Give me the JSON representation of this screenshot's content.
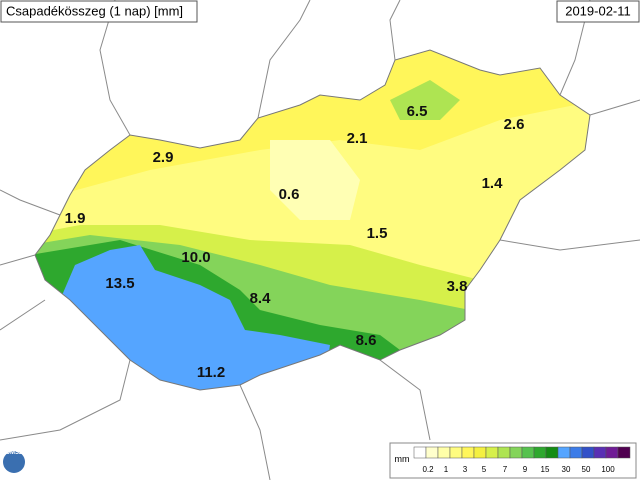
{
  "header": {
    "title": "Csapadékösszeg (1 nap) [mm]",
    "date": "2019-02-11"
  },
  "stations": [
    "2.9",
    "6.5",
    "2.1",
    "2.6",
    "0.6",
    "1.4",
    "1.9",
    "1.5",
    "10.0",
    "13.5",
    "3.8",
    "8.4",
    "8.6",
    "11.2"
  ],
  "legend": {
    "unit": "mm",
    "labels": [
      "0.2",
      "1",
      "3",
      "5",
      "7",
      "9",
      "15",
      "30",
      "50",
      "100"
    ],
    "colors": [
      "#ffffff",
      "#ffffcc",
      "#ffffa8",
      "#fffc80",
      "#fff65a",
      "#f4f040",
      "#d6f04a",
      "#aee452",
      "#84d45a",
      "#56c24e",
      "#2ea82e",
      "#148c14",
      "#55a5ff",
      "#3c7ce8",
      "#3250c8",
      "#5a2fb4",
      "#701c96",
      "#500050"
    ]
  },
  "logo": "OMSZ"
}
